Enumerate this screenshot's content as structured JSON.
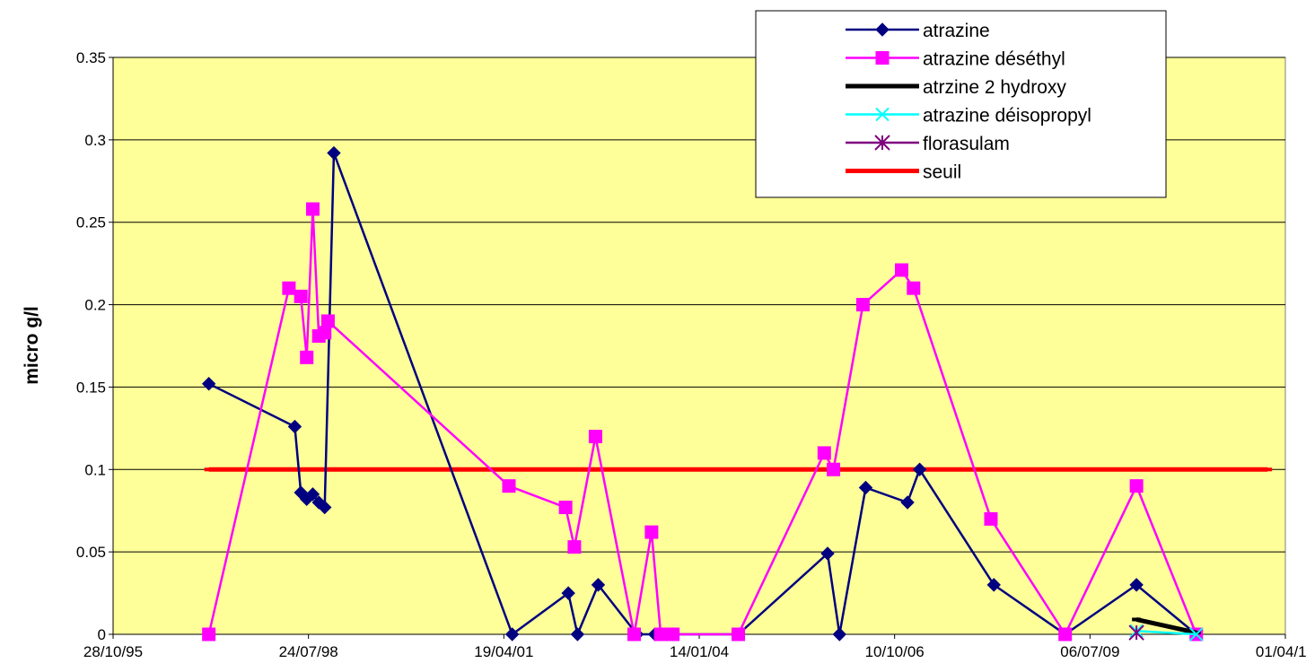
{
  "chart_data": {
    "type": "line",
    "title": "",
    "xlabel": "",
    "ylabel": "micro g/l",
    "x_tick_labels": [
      "28/10/95",
      "24/07/98",
      "19/04/01",
      "14/01/04",
      "10/10/06",
      "06/07/09",
      "01/04/12"
    ],
    "y_tick_labels": [
      "0",
      "0.05",
      "0.1",
      "0.15",
      "0.2",
      "0.25",
      "0.3",
      "0.35"
    ],
    "xlim": [
      "1995-10-28",
      "2012-04-01"
    ],
    "ylim": [
      0,
      0.35
    ],
    "y_ticks": [
      0,
      0.05,
      0.1,
      0.15,
      0.2,
      0.25,
      0.3,
      0.35
    ],
    "grid": "horizontal",
    "plot_background": "#ffff99",
    "legend_position": "top-right",
    "series": [
      {
        "name": "atrazine",
        "color": "#000080",
        "marker": "diamond",
        "points": [
          [
            "1997-03-01",
            0.152
          ],
          [
            "1998-05-15",
            0.126
          ],
          [
            "1998-06-15",
            0.086
          ],
          [
            "1998-07-15",
            0.082
          ],
          [
            "1998-08-15",
            0.085
          ],
          [
            "1998-09-15",
            0.08
          ],
          [
            "1998-10-15",
            0.077
          ],
          [
            "1998-12-01",
            0.292
          ],
          [
            "2001-06-01",
            0.0
          ],
          [
            "2002-03-15",
            0.025
          ],
          [
            "2002-05-01",
            0.0
          ],
          [
            "2002-08-15",
            0.03
          ],
          [
            "2003-03-01",
            0.0
          ],
          [
            "2003-06-01",
            0.0
          ],
          [
            "2003-07-01",
            0.0
          ],
          [
            "2003-08-01",
            0.0
          ],
          [
            "2003-09-01",
            0.0
          ],
          [
            "2004-08-01",
            0.0
          ],
          [
            "2005-11-01",
            0.049
          ],
          [
            "2006-01-01",
            0.0
          ],
          [
            "2006-05-15",
            0.089
          ],
          [
            "2006-12-15",
            0.08
          ],
          [
            "2007-02-15",
            0.1
          ],
          [
            "2008-03-01",
            0.03
          ],
          [
            "2009-03-01",
            0.0
          ],
          [
            "2010-03-01",
            0.03
          ],
          [
            "2011-01-01",
            0.0
          ]
        ]
      },
      {
        "name": "atrazine déséthyl",
        "color": "#ff00ff",
        "marker": "square",
        "points": [
          [
            "1997-03-01",
            0.0
          ],
          [
            "1998-04-15",
            0.21
          ],
          [
            "1998-06-15",
            0.205
          ],
          [
            "1998-07-15",
            0.168
          ],
          [
            "1998-08-15",
            0.258
          ],
          [
            "1998-09-15",
            0.181
          ],
          [
            "1998-10-15",
            0.183
          ],
          [
            "1998-11-01",
            0.19
          ],
          [
            "2001-05-15",
            0.09
          ],
          [
            "2002-03-01",
            0.077
          ],
          [
            "2002-04-15",
            0.053
          ],
          [
            "2002-08-01",
            0.12
          ],
          [
            "2003-02-15",
            0.0
          ],
          [
            "2003-05-15",
            0.062
          ],
          [
            "2003-07-01",
            0.0
          ],
          [
            "2003-08-01",
            0.0
          ],
          [
            "2003-09-01",
            0.0
          ],
          [
            "2004-08-01",
            0.0
          ],
          [
            "2005-10-15",
            0.11
          ],
          [
            "2005-12-01",
            0.1
          ],
          [
            "2006-05-01",
            0.2
          ],
          [
            "2006-11-15",
            0.221
          ],
          [
            "2007-01-15",
            0.21
          ],
          [
            "2008-02-15",
            0.07
          ],
          [
            "2009-03-01",
            0.0
          ],
          [
            "2010-03-01",
            0.09
          ],
          [
            "2011-01-01",
            0.0
          ]
        ]
      },
      {
        "name": "atrzine 2 hydroxy",
        "color": "#000000",
        "marker": "dash",
        "points": [
          [
            "2010-03-01",
            0.009
          ],
          [
            "2011-01-01",
            0.001
          ]
        ]
      },
      {
        "name": "atrazine déisopropyl",
        "color": "#00ffff",
        "marker": "x",
        "points": [
          [
            "2010-03-01",
            0.002
          ],
          [
            "2011-01-01",
            0.0
          ]
        ]
      },
      {
        "name": "florasulam",
        "color": "#800080",
        "marker": "asterisk",
        "points": [
          [
            "2010-03-01",
            0.001
          ]
        ]
      },
      {
        "name": "seuil",
        "color": "#ff0000",
        "marker": "dash",
        "points": [
          [
            "1997-03-01",
            0.1
          ],
          [
            "1998-04-15",
            0.1
          ],
          [
            "1998-06-15",
            0.1
          ],
          [
            "1998-07-15",
            0.1
          ],
          [
            "1998-08-15",
            0.1
          ],
          [
            "1998-09-15",
            0.1
          ],
          [
            "1998-10-15",
            0.1
          ],
          [
            "1998-11-01",
            0.1
          ],
          [
            "1999-08-01",
            0.1
          ],
          [
            "2001-05-15",
            0.1
          ],
          [
            "2002-03-01",
            0.1
          ],
          [
            "2002-08-01",
            0.1
          ],
          [
            "2003-02-15",
            0.1
          ],
          [
            "2003-05-15",
            0.1
          ],
          [
            "2003-07-01",
            0.1
          ],
          [
            "2003-09-01",
            0.1
          ],
          [
            "2004-08-01",
            0.1
          ],
          [
            "2005-10-15",
            0.1
          ],
          [
            "2006-05-01",
            0.1
          ],
          [
            "2007-01-15",
            0.1
          ],
          [
            "2008-02-15",
            0.1
          ],
          [
            "2009-03-01",
            0.1
          ],
          [
            "2010-03-01",
            0.1
          ],
          [
            "2011-01-01",
            0.1
          ],
          [
            "2012-01-01",
            0.1
          ]
        ]
      }
    ]
  }
}
